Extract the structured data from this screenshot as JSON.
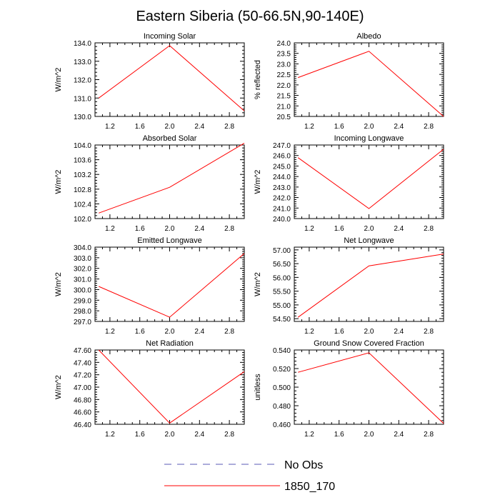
{
  "figure": {
    "title": "Eastern Siberia (50-66.5N,90-140E)"
  },
  "legend": {
    "entries": [
      {
        "label": "No Obs",
        "style": "dashed",
        "color": "#5a5ab4"
      },
      {
        "label": "1850_170",
        "style": "solid",
        "color": "#ff0000"
      }
    ]
  },
  "colors": {
    "series_line": "#ff0000",
    "axes": "#000000"
  },
  "chart_data": [
    {
      "type": "line",
      "title": "Incoming Solar",
      "xlabel": "",
      "ylabel": "W/m^2",
      "xlim": [
        1.0,
        3.0
      ],
      "ylim": [
        130.0,
        134.0
      ],
      "xticks": [
        1.2,
        1.6,
        2.0,
        2.4,
        2.8
      ],
      "xtick_labels": [
        "1.2",
        "1.6",
        "2.0",
        "2.4",
        "2.8"
      ],
      "yticks": [
        130.0,
        131.0,
        132.0,
        133.0,
        134.0
      ],
      "ytick_labels": [
        "130.0",
        "131.0",
        "132.0",
        "133.0",
        "134.0"
      ],
      "grid": false,
      "series": [
        {
          "x": [
            1.05,
            2.0,
            3.0
          ],
          "y": [
            131.0,
            133.85,
            130.3
          ]
        }
      ]
    },
    {
      "type": "line",
      "title": "Albedo",
      "xlabel": "",
      "ylabel": "% reflected",
      "xlim": [
        1.0,
        3.0
      ],
      "ylim": [
        20.5,
        24.0
      ],
      "xticks": [
        1.2,
        1.6,
        2.0,
        2.4,
        2.8
      ],
      "xtick_labels": [
        "1.2",
        "1.6",
        "2.0",
        "2.4",
        "2.8"
      ],
      "yticks": [
        20.5,
        21.0,
        21.5,
        22.0,
        22.5,
        23.0,
        23.5,
        24.0
      ],
      "ytick_labels": [
        "20.5",
        "21.0",
        "21.5",
        "22.0",
        "22.5",
        "23.0",
        "23.5",
        "24.0"
      ],
      "grid": false,
      "series": [
        {
          "x": [
            1.05,
            2.0,
            3.0
          ],
          "y": [
            22.35,
            23.6,
            20.5
          ]
        }
      ]
    },
    {
      "type": "line",
      "title": "Absorbed Solar",
      "xlabel": "",
      "ylabel": "W/m^2",
      "xlim": [
        1.0,
        3.0
      ],
      "ylim": [
        102.0,
        104.0
      ],
      "xticks": [
        1.2,
        1.6,
        2.0,
        2.4,
        2.8
      ],
      "xtick_labels": [
        "1.2",
        "1.6",
        "2.0",
        "2.4",
        "2.8"
      ],
      "yticks": [
        102.0,
        102.4,
        102.8,
        103.2,
        103.6,
        104.0
      ],
      "ytick_labels": [
        "102.0",
        "102.4",
        "102.8",
        "103.2",
        "103.6",
        "104.0"
      ],
      "grid": false,
      "series": [
        {
          "x": [
            1.05,
            2.0,
            3.0
          ],
          "y": [
            102.15,
            102.85,
            104.05
          ]
        }
      ]
    },
    {
      "type": "line",
      "title": "Incoming Longwave",
      "xlabel": "",
      "ylabel": "W/m^2",
      "xlim": [
        1.0,
        3.0
      ],
      "ylim": [
        240.0,
        247.0
      ],
      "xticks": [
        1.2,
        1.6,
        2.0,
        2.4,
        2.8
      ],
      "xtick_labels": [
        "1.2",
        "1.6",
        "2.0",
        "2.4",
        "2.8"
      ],
      "yticks": [
        240.0,
        241.0,
        242.0,
        243.0,
        244.0,
        245.0,
        246.0,
        247.0
      ],
      "ytick_labels": [
        "240.0",
        "241.0",
        "242.0",
        "243.0",
        "244.0",
        "245.0",
        "246.0",
        "247.0"
      ],
      "grid": false,
      "series": [
        {
          "x": [
            1.05,
            2.0,
            3.0
          ],
          "y": [
            245.8,
            240.95,
            246.6
          ]
        }
      ]
    },
    {
      "type": "line",
      "title": "Emitted Longwave",
      "xlabel": "",
      "ylabel": "W/m^2",
      "xlim": [
        1.0,
        3.0
      ],
      "ylim": [
        297.0,
        304.0
      ],
      "xticks": [
        1.2,
        1.6,
        2.0,
        2.4,
        2.8
      ],
      "xtick_labels": [
        "1.2",
        "1.6",
        "2.0",
        "2.4",
        "2.8"
      ],
      "yticks": [
        297.0,
        298.0,
        299.0,
        300.0,
        301.0,
        302.0,
        303.0,
        304.0
      ],
      "ytick_labels": [
        "297.0",
        "298.0",
        "299.0",
        "300.0",
        "301.0",
        "302.0",
        "303.0",
        "304.0"
      ],
      "grid": false,
      "series": [
        {
          "x": [
            1.05,
            2.0,
            3.0
          ],
          "y": [
            300.3,
            297.4,
            303.4
          ]
        }
      ]
    },
    {
      "type": "line",
      "title": "Net Longwave",
      "xlabel": "",
      "ylabel": "W/m^2",
      "xlim": [
        1.0,
        3.0
      ],
      "ylim": [
        54.4,
        57.1
      ],
      "xticks": [
        1.2,
        1.6,
        2.0,
        2.4,
        2.8
      ],
      "xtick_labels": [
        "1.2",
        "1.6",
        "2.0",
        "2.4",
        "2.8"
      ],
      "yticks": [
        54.5,
        55.0,
        55.5,
        56.0,
        56.5,
        57.0
      ],
      "ytick_labels": [
        "54.50",
        "55.00",
        "55.50",
        "56.00",
        "56.50",
        "57.00"
      ],
      "grid": false,
      "series": [
        {
          "x": [
            1.05,
            2.0,
            3.0
          ],
          "y": [
            54.55,
            56.42,
            56.85
          ]
        }
      ]
    },
    {
      "type": "line",
      "title": "Net Radiation",
      "xlabel": "",
      "ylabel": "W/m^2",
      "xlim": [
        1.0,
        3.0
      ],
      "ylim": [
        46.4,
        47.6
      ],
      "xticks": [
        1.2,
        1.6,
        2.0,
        2.4,
        2.8
      ],
      "xtick_labels": [
        "1.2",
        "1.6",
        "2.0",
        "2.4",
        "2.8"
      ],
      "yticks": [
        46.4,
        46.6,
        46.8,
        47.0,
        47.2,
        47.4,
        47.6
      ],
      "ytick_labels": [
        "46.40",
        "46.60",
        "46.80",
        "47.00",
        "47.20",
        "47.40",
        "47.60"
      ],
      "grid": false,
      "series": [
        {
          "x": [
            1.05,
            2.0,
            3.0
          ],
          "y": [
            47.6,
            46.42,
            47.25
          ]
        }
      ]
    },
    {
      "type": "line",
      "title": "Ground Snow Covered Fraction",
      "xlabel": "",
      "ylabel": "unitless",
      "xlim": [
        1.0,
        3.0
      ],
      "ylim": [
        0.46,
        0.54
      ],
      "xticks": [
        1.2,
        1.6,
        2.0,
        2.4,
        2.8
      ],
      "xtick_labels": [
        "1.2",
        "1.6",
        "2.0",
        "2.4",
        "2.8"
      ],
      "yticks": [
        0.46,
        0.48,
        0.5,
        0.52,
        0.54
      ],
      "ytick_labels": [
        "0.460",
        "0.480",
        "0.500",
        "0.520",
        "0.540"
      ],
      "grid": false,
      "series": [
        {
          "x": [
            1.05,
            2.0,
            3.0
          ],
          "y": [
            0.516,
            0.537,
            0.461
          ]
        }
      ]
    }
  ]
}
